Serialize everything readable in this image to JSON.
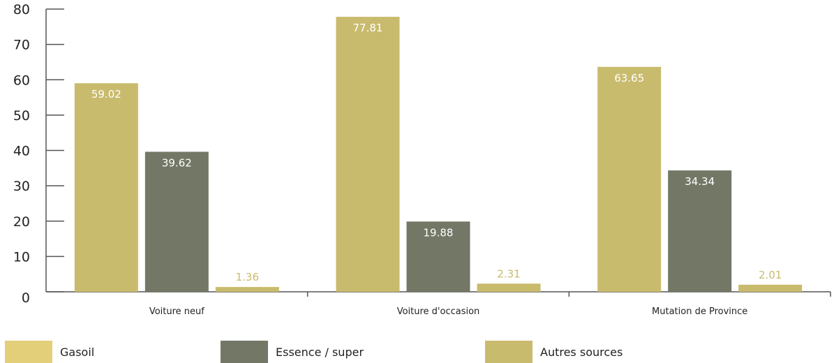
{
  "chart_data": {
    "type": "bar",
    "categories": [
      "Voiture neuf",
      "Voiture d'occasion",
      "Mutation de Province"
    ],
    "series": [
      {
        "name": "Gasoil",
        "values": [
          59.02,
          77.81,
          63.65
        ],
        "color": "#c9bb6d",
        "label_color": "#ffffff"
      },
      {
        "name": "Essence / super",
        "values": [
          39.62,
          19.88,
          34.34
        ],
        "color": "#737866",
        "label_color": "#ffffff"
      },
      {
        "name": "Autres sources",
        "values": [
          1.36,
          2.31,
          2.01
        ],
        "color": "#c9bb6d",
        "label_color": "#c9bb6d"
      }
    ],
    "yticks": [
      0,
      10,
      20,
      30,
      40,
      50,
      60,
      70,
      80
    ],
    "ylim": [
      0,
      80
    ],
    "legend_position": "bottom",
    "legend_colors": [
      "#e3cf7a",
      "#737866",
      "#c9bb6d"
    ],
    "grid": false
  }
}
